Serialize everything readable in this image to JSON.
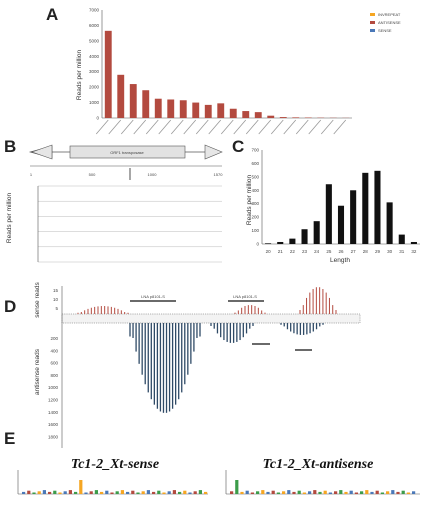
{
  "panels": {
    "a": "A",
    "b": "B",
    "c": "C",
    "d": "D",
    "e": "E"
  },
  "chart_data": [
    {
      "id": "A",
      "type": "bar",
      "ylabel": "Reads per million",
      "ylim": [
        0,
        7000
      ],
      "yticks": [
        "0",
        "1000",
        "2000",
        "3000",
        "4000",
        "5000",
        "6000",
        "7000"
      ],
      "legend_position": "top-right",
      "series": [
        {
          "name": "INVREPEAT",
          "color": "#f5a623"
        },
        {
          "name": "ANTISENSE",
          "color": "#b34a3f"
        },
        {
          "name": "SENSE",
          "color": "#4a78b8"
        }
      ],
      "categories": [
        "c1",
        "c2",
        "c3",
        "c4",
        "c5",
        "c6",
        "c7",
        "c8",
        "c9",
        "c10",
        "c11",
        "c12",
        "c13",
        "c14",
        "c15",
        "c16",
        "c17",
        "c18",
        "c19",
        "c20"
      ],
      "values": [
        5650,
        2800,
        2200,
        1800,
        1250,
        1200,
        1150,
        1000,
        850,
        950,
        600,
        450,
        380,
        150,
        60,
        40,
        30,
        20,
        15,
        10
      ]
    },
    {
      "id": "B",
      "type": "line",
      "ylabel": "Reads per million",
      "gene_label": "ORF1 transposase",
      "coord_ticks": [
        "1",
        "500",
        "1000",
        "1570"
      ]
    },
    {
      "id": "C",
      "type": "bar",
      "xlabel": "Length",
      "ylabel": "Reads per million",
      "categories": [
        "20",
        "21",
        "22",
        "23",
        "24",
        "25",
        "26",
        "27",
        "28",
        "29",
        "30",
        "31",
        "32"
      ],
      "values": [
        5,
        15,
        40,
        110,
        170,
        445,
        285,
        400,
        530,
        545,
        310,
        70,
        15
      ],
      "ylim": [
        0,
        700
      ],
      "yticks": [
        "0",
        "100",
        "200",
        "300",
        "400",
        "500",
        "600",
        "700"
      ],
      "color": "#111111"
    },
    {
      "id": "D",
      "type": "bar",
      "ylabel_top": "sense reads",
      "ylabel_bottom": "antisense reads",
      "sense_ticks": [
        "15",
        "10",
        "5"
      ],
      "antisense_ticks": [
        "200",
        "400",
        "600",
        "800",
        "1000",
        "1200",
        "1400",
        "1600",
        "1800"
      ],
      "labels": [
        "LNA p8101-S",
        "LNA p8101-S"
      ],
      "sense_color": "#b34a3f",
      "antisense_color": "#2f4a66"
    }
  ],
  "logos": {
    "left_title": "Tc1-2_Xt-sense",
    "right_title": "Tc1-2_Xt-antisense"
  }
}
